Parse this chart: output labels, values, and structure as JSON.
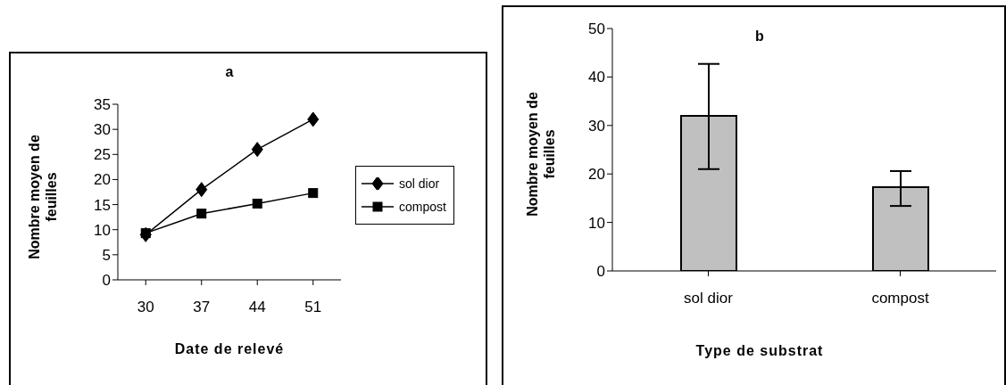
{
  "chart_data": [
    {
      "type": "line",
      "title": "a",
      "xlabel": "Date de relevé",
      "ylabel": "Nombre moyen de feuilles",
      "categories": [
        "30",
        "37",
        "44",
        "51"
      ],
      "ylim": [
        0,
        35
      ],
      "yticks": [
        0,
        5,
        10,
        15,
        20,
        25,
        30,
        35
      ],
      "grid": false,
      "legend": "right",
      "line_style": "solid",
      "series": [
        {
          "name": "sol dior",
          "color": "#000000",
          "marker": "diamond",
          "values": [
            9,
            18,
            26,
            32
          ]
        },
        {
          "name": "compost",
          "color": "#000000",
          "marker": "square",
          "values": [
            9.3,
            13.2,
            15.2,
            17.3
          ]
        }
      ]
    },
    {
      "type": "bar",
      "title": "b",
      "xlabel": "Type de substrat",
      "ylabel": "Nombre moyen de feuilles",
      "categories": [
        "sol dior",
        "compost"
      ],
      "values": [
        32,
        17.3
      ],
      "errors": [
        [
          21,
          42.7
        ],
        [
          13.4,
          20.6
        ]
      ],
      "color": "#c0c0c0",
      "ylim": [
        0,
        50
      ],
      "yticks": [
        0,
        10,
        20,
        30,
        40,
        50
      ],
      "grid": false,
      "legend": false
    }
  ]
}
